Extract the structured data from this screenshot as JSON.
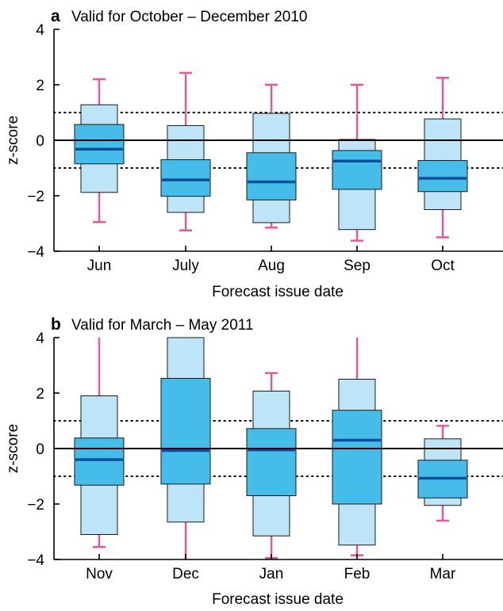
{
  "chart_data": [
    {
      "type": "boxplot",
      "panel": "a",
      "title": "Valid for October – December 2010",
      "xlabel": "Forecast issue date",
      "ylabel": "z-score",
      "ylim": [
        -4,
        4
      ],
      "yticks": [
        "−4",
        "−2",
        "0",
        "2",
        "4"
      ],
      "ytick_values": [
        -4,
        -2,
        0,
        2,
        4
      ],
      "reference_lines": {
        "solid": 0,
        "dotted": [
          1,
          -1
        ]
      },
      "categories": [
        "Jun",
        "July",
        "Aug",
        "Sep",
        "Oct"
      ],
      "boxes": [
        {
          "whisker_low": -2.95,
          "outer_low": -1.88,
          "q1": -0.85,
          "median": -0.32,
          "q3": 0.57,
          "outer_high": 1.28,
          "whisker_high": 2.2
        },
        {
          "whisker_low": -3.25,
          "outer_low": -2.6,
          "q1": -2.02,
          "median": -1.43,
          "q3": -0.7,
          "outer_high": 0.53,
          "whisker_high": 2.43
        },
        {
          "whisker_low": -3.15,
          "outer_low": -2.97,
          "q1": -2.15,
          "median": -1.5,
          "q3": -0.45,
          "outer_high": 0.97,
          "whisker_high": 2.0
        },
        {
          "whisker_low": -3.62,
          "outer_low": -3.22,
          "q1": -1.77,
          "median": -0.75,
          "q3": -0.37,
          "outer_high": 0.03,
          "whisker_high": 2.0
        },
        {
          "whisker_low": -3.5,
          "outer_low": -2.5,
          "q1": -1.85,
          "median": -1.37,
          "q3": -0.73,
          "outer_high": 0.77,
          "whisker_high": 2.25
        }
      ]
    },
    {
      "type": "boxplot",
      "panel": "b",
      "title": "Valid for March – May 2011",
      "xlabel": "Forecast issue date",
      "ylabel": "z-score",
      "ylim": [
        -4,
        4
      ],
      "yticks": [
        "−4",
        "−2",
        "0",
        "2",
        "4"
      ],
      "ytick_values": [
        -4,
        -2,
        0,
        2,
        4
      ],
      "reference_lines": {
        "solid": 0,
        "dotted": [
          1,
          -1
        ]
      },
      "categories": [
        "Nov",
        "Dec",
        "Jan",
        "Feb",
        "Mar"
      ],
      "boxes": [
        {
          "whisker_low": -3.55,
          "outer_low": -3.1,
          "q1": -1.32,
          "median": -0.4,
          "q3": 0.38,
          "outer_high": 1.9,
          "whisker_high": 4.0
        },
        {
          "whisker_low": -4.0,
          "outer_low": -2.65,
          "q1": -1.28,
          "median": -0.07,
          "q3": 2.53,
          "outer_high": 4.0,
          "whisker_high": 4.0
        },
        {
          "whisker_low": -3.95,
          "outer_low": -3.15,
          "q1": -1.7,
          "median": -0.05,
          "q3": 0.72,
          "outer_high": 2.07,
          "whisker_high": 2.72
        },
        {
          "whisker_low": -3.85,
          "outer_low": -3.48,
          "q1": -2.0,
          "median": 0.3,
          "q3": 1.38,
          "outer_high": 2.5,
          "whisker_high": 4.0
        },
        {
          "whisker_low": -2.6,
          "outer_low": -2.05,
          "q1": -1.78,
          "median": -1.07,
          "q3": -0.42,
          "outer_high": 0.35,
          "whisker_high": 0.82
        }
      ]
    }
  ],
  "colors": {
    "inner_box": "#45bde8",
    "outer_box": "#bde5f7",
    "median": "#0a4e9e",
    "whisker": "#e8559a",
    "axis": "#000000"
  }
}
